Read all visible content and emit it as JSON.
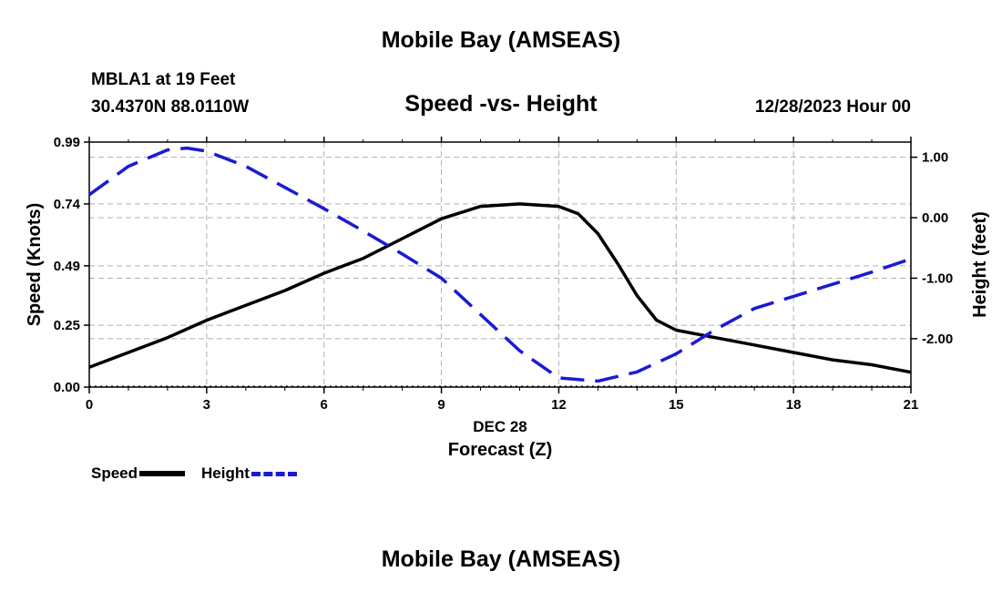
{
  "header": {
    "title": "Mobile Bay (AMSEAS)",
    "station": "MBLA1 at 19 Feet",
    "coords": "30.4370N  88.0110W",
    "subtitle": "Speed -vs- Height",
    "datetime": "12/28/2023 Hour 00"
  },
  "footer": {
    "title": "Mobile Bay (AMSEAS)"
  },
  "legend": {
    "speed_label": "Speed",
    "height_label": "Height"
  },
  "colors": {
    "speed": "#000000",
    "height": "#1a1ad6",
    "grid": "#b0b0b0"
  },
  "chart_data": {
    "type": "line",
    "title": "Speed -vs- Height",
    "xlabel": "Forecast (Z)",
    "xsublabel": "DEC 28",
    "ylabel": "Speed (Knots)",
    "y2label": "Height (feet)",
    "xlim": [
      0,
      21
    ],
    "ylim": [
      0,
      0.99
    ],
    "y2lim": [
      -2.8,
      1.25
    ],
    "xticks": [
      0,
      3,
      6,
      9,
      12,
      15,
      18,
      21
    ],
    "yticks": [
      0.0,
      0.25,
      0.49,
      0.74,
      0.99
    ],
    "ytick_labels": [
      "0.00",
      "0.25",
      "0.49",
      "0.74",
      "0.99"
    ],
    "y2ticks": [
      1.0,
      0.0,
      -1.0,
      -2.0
    ],
    "y2tick_labels": [
      "1.00",
      "0.00",
      "-1.00",
      "-2.00"
    ],
    "grid": true,
    "series": [
      {
        "name": "Speed",
        "axis": "left",
        "style": "solid",
        "x": [
          0,
          1,
          2,
          3,
          4,
          5,
          6,
          7,
          8,
          9,
          10,
          11,
          12,
          12.5,
          13,
          13.5,
          14,
          14.5,
          15,
          16,
          17,
          18,
          19,
          20,
          21
        ],
        "y": [
          0.08,
          0.14,
          0.2,
          0.27,
          0.33,
          0.39,
          0.46,
          0.52,
          0.6,
          0.68,
          0.73,
          0.74,
          0.73,
          0.7,
          0.62,
          0.5,
          0.37,
          0.27,
          0.23,
          0.2,
          0.17,
          0.14,
          0.11,
          0.09,
          0.06
        ]
      },
      {
        "name": "Height",
        "axis": "right",
        "style": "dashed",
        "x": [
          0,
          1,
          2,
          2.5,
          3,
          4,
          5,
          6,
          7,
          8,
          9,
          10,
          11,
          12,
          13,
          14,
          15,
          16,
          17,
          18,
          19,
          20,
          21
        ],
        "y": [
          0.38,
          0.85,
          1.12,
          1.15,
          1.1,
          0.85,
          0.5,
          0.15,
          -0.22,
          -0.6,
          -1.0,
          -1.6,
          -2.2,
          -2.65,
          -2.7,
          -2.55,
          -2.25,
          -1.85,
          -1.5,
          -1.3,
          -1.1,
          -0.9,
          -0.68
        ]
      }
    ]
  }
}
